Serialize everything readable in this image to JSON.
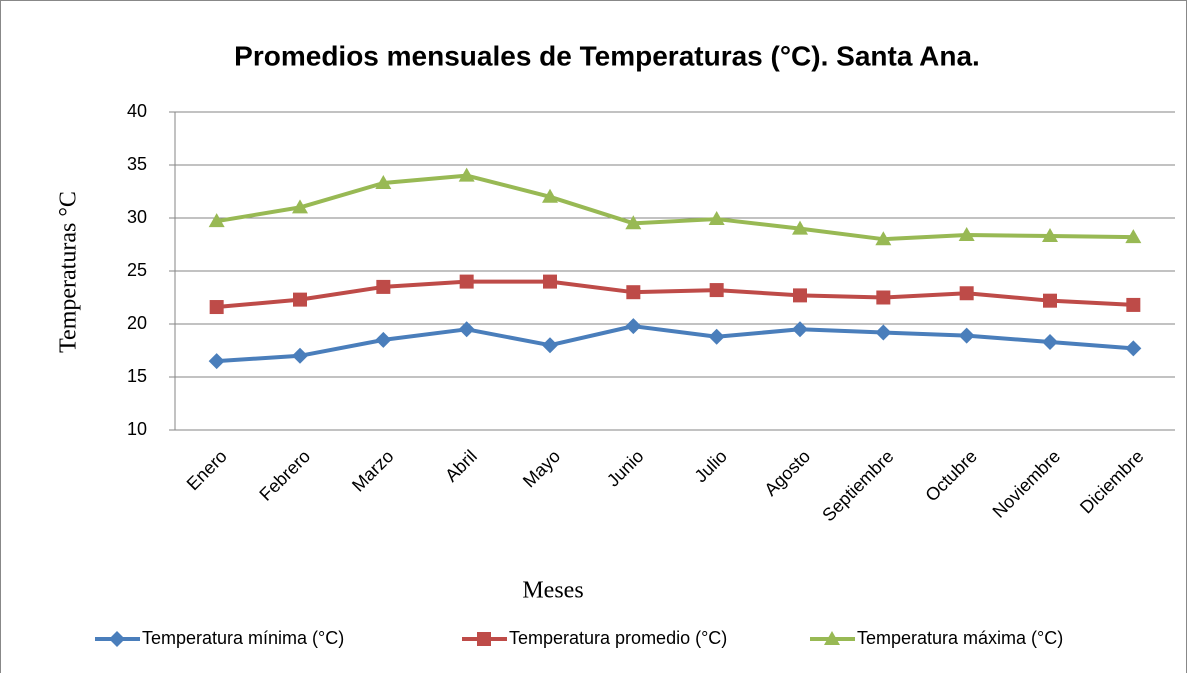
{
  "chart_data": {
    "type": "line",
    "title": "Promedios mensuales de Temperaturas (°C). Santa Ana.",
    "xlabel": "Meses",
    "ylabel": "Temperaturas °C",
    "categories": [
      "Enero",
      "Febrero",
      "Marzo",
      "Abril",
      "Mayo",
      "Junio",
      "Julio",
      "Agosto",
      "Septiembre",
      "Octubre",
      "Noviembre",
      "Diciembre"
    ],
    "series": [
      {
        "name": "Temperatura mínima (°C)",
        "color": "#4a7ebb",
        "marker": "diamond",
        "values": [
          16.5,
          17.0,
          18.5,
          19.5,
          18.0,
          19.8,
          18.8,
          19.5,
          19.2,
          18.9,
          18.3,
          17.7
        ]
      },
      {
        "name": "Temperatura promedio (°C)",
        "color": "#be4b48",
        "marker": "square",
        "values": [
          21.6,
          22.3,
          23.5,
          24.0,
          24.0,
          23.0,
          23.2,
          22.7,
          22.5,
          22.9,
          22.2,
          21.8
        ]
      },
      {
        "name": "Temperatura máxima (°C)",
        "color": "#98b954",
        "marker": "triangle",
        "values": [
          29.7,
          31.0,
          33.3,
          34.0,
          32.0,
          29.5,
          29.9,
          29.0,
          28.0,
          28.4,
          28.3,
          28.2
        ]
      }
    ],
    "ylim": [
      10,
      40
    ],
    "yticks": [
      10,
      15,
      20,
      25,
      30,
      35,
      40
    ],
    "grid": true,
    "legend": "bottom"
  }
}
